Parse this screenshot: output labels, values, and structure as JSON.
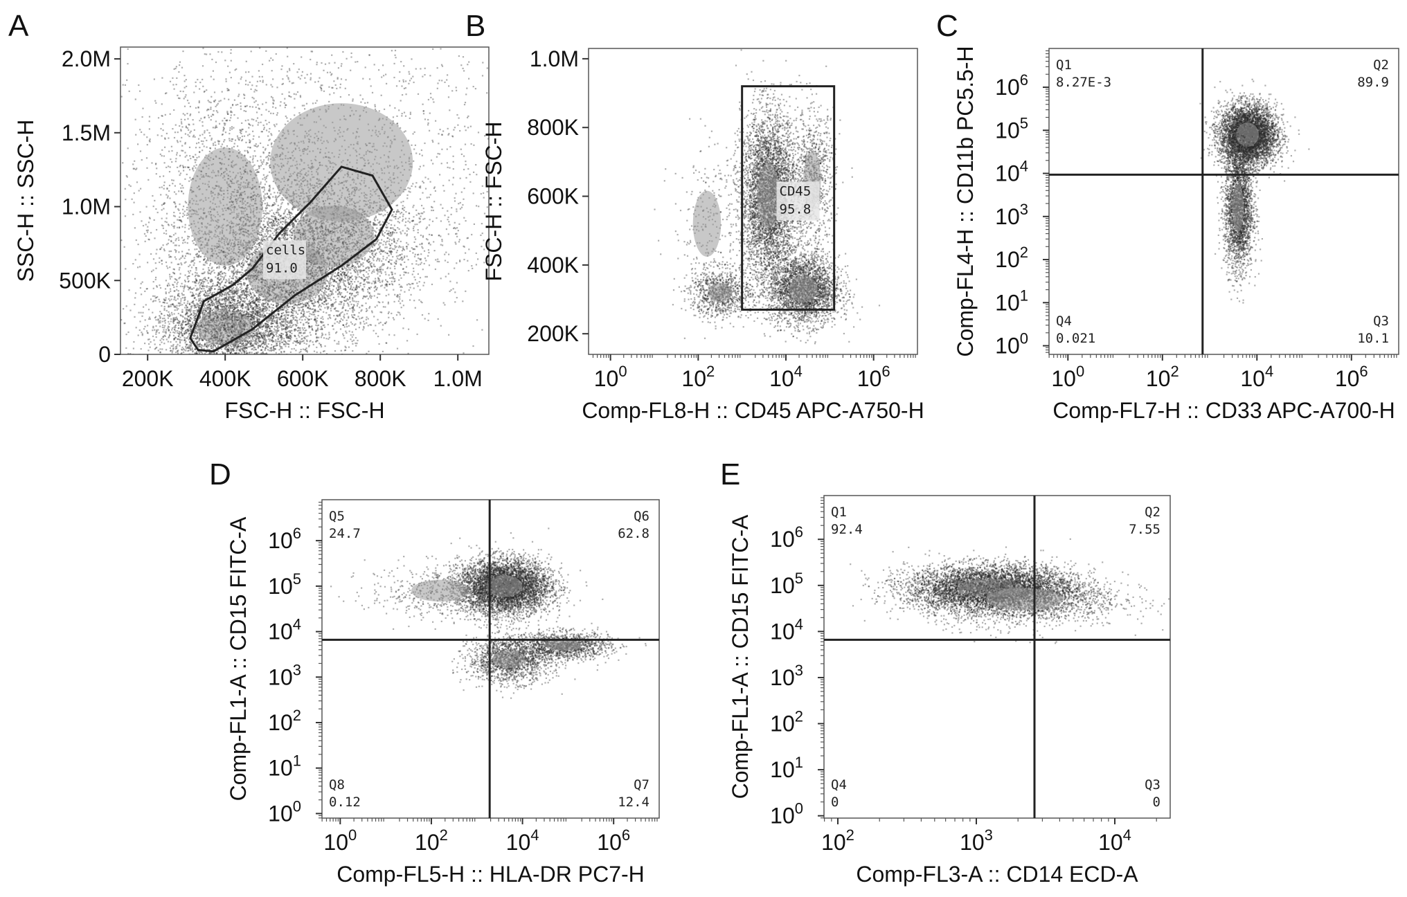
{
  "chart_data": [
    {
      "type": "scatter",
      "panel": "A",
      "xlabel": "FSC-H :: FSC-H",
      "ylabel": "SSC-H :: SSC-H",
      "xscale": "linear",
      "yscale": "linear",
      "xlim": [
        130000,
        1080000
      ],
      "ylim": [
        0,
        2080000
      ],
      "xticks": [
        {
          "v": 200000,
          "label": "200K"
        },
        {
          "v": 400000,
          "label": "400K"
        },
        {
          "v": 600000,
          "label": "600K"
        },
        {
          "v": 800000,
          "label": "800K"
        },
        {
          "v": 1000000,
          "label": "1.0M"
        }
      ],
      "yticks": [
        {
          "v": 0,
          "label": "0"
        },
        {
          "v": 500000,
          "label": "500K"
        },
        {
          "v": 1000000,
          "label": "1.0M"
        },
        {
          "v": 1500000,
          "label": "1.5M"
        },
        {
          "v": 2000000,
          "label": "2.0M"
        }
      ],
      "populations": [
        {
          "cx": 400000,
          "cy": 180000,
          "sx": 90000,
          "sy": 150000,
          "n": 3200
        },
        {
          "cx": 560000,
          "cy": 550000,
          "sx": 130000,
          "sy": 260000,
          "n": 3800
        },
        {
          "cx": 680000,
          "cy": 800000,
          "sx": 130000,
          "sy": 260000,
          "n": 2000
        },
        {
          "cx": 400000,
          "cy": 1000000,
          "sx": 120000,
          "sy": 500000,
          "n": 1800
        },
        {
          "cx": 700000,
          "cy": 1300000,
          "sx": 230000,
          "sy": 500000,
          "n": 1600
        }
      ],
      "gates": [
        {
          "kind": "polygon",
          "name": "cells",
          "value": "91.0",
          "points": [
            [
              330000,
              30000
            ],
            [
              310000,
              110000
            ],
            [
              345000,
              360000
            ],
            [
              420000,
              470000
            ],
            [
              470000,
              580000
            ],
            [
              540000,
              820000
            ],
            [
              620000,
              1030000
            ],
            [
              700000,
              1270000
            ],
            [
              780000,
              1210000
            ],
            [
              830000,
              980000
            ],
            [
              790000,
              780000
            ],
            [
              700000,
              600000
            ],
            [
              580000,
              400000
            ],
            [
              470000,
              170000
            ],
            [
              370000,
              20000
            ]
          ],
          "label_at": [
            505000,
            650000
          ]
        }
      ]
    },
    {
      "type": "scatter",
      "panel": "B",
      "xlabel": "Comp-FL8-H :: CD45 APC-A750-H",
      "ylabel": "FSC-H :: FSC-H",
      "xscale": "log",
      "yscale": "linear",
      "xlim": [
        -0.5,
        7.0
      ],
      "ylim": [
        140000,
        1030000
      ],
      "xticks": [
        {
          "v": 0,
          "base": "10",
          "exp": "0"
        },
        {
          "v": 2,
          "base": "10",
          "exp": "2"
        },
        {
          "v": 4,
          "base": "10",
          "exp": "4"
        },
        {
          "v": 6,
          "base": "10",
          "exp": "6"
        }
      ],
      "yticks": [
        {
          "v": 200000,
          "label": "200K"
        },
        {
          "v": 400000,
          "label": "400K"
        },
        {
          "v": 600000,
          "label": "600K"
        },
        {
          "v": 800000,
          "label": "800K"
        },
        {
          "v": 1000000,
          "label": "1.0M"
        }
      ],
      "populations": [
        {
          "cx": 3.6,
          "cy": 600000,
          "sx": 0.32,
          "sy": 120000,
          "n": 4500
        },
        {
          "cx": 4.4,
          "cy": 330000,
          "sx": 0.4,
          "sy": 50000,
          "n": 2800
        },
        {
          "cx": 4.6,
          "cy": 650000,
          "sx": 0.25,
          "sy": 100000,
          "n": 900
        },
        {
          "cx": 2.5,
          "cy": 320000,
          "sx": 0.35,
          "sy": 35000,
          "n": 900
        },
        {
          "cx": 2.2,
          "cy": 520000,
          "sx": 0.4,
          "sy": 120000,
          "n": 250
        }
      ],
      "gates": [
        {
          "kind": "rect",
          "name": "CD45",
          "value": "95.8",
          "x0": 3.0,
          "x1": 5.1,
          "y0": 270000,
          "y1": 920000,
          "label_at": [
            3.85,
            590000
          ]
        }
      ]
    },
    {
      "type": "scatter",
      "panel": "C",
      "xlabel": "Comp-FL7-H :: CD33 APC-A700-H",
      "ylabel": "Comp-FL4-H :: CD11b PC5.5-H",
      "xscale": "log",
      "yscale": "log",
      "xlim": [
        -0.4,
        7.0
      ],
      "ylim": [
        -0.2,
        6.9
      ],
      "xticks": [
        {
          "v": 0,
          "base": "10",
          "exp": "0"
        },
        {
          "v": 2,
          "base": "10",
          "exp": "2"
        },
        {
          "v": 4,
          "base": "10",
          "exp": "4"
        },
        {
          "v": 6,
          "base": "10",
          "exp": "6"
        }
      ],
      "yticks": [
        {
          "v": 0,
          "base": "10",
          "exp": "0"
        },
        {
          "v": 1,
          "base": "10",
          "exp": "1"
        },
        {
          "v": 2,
          "base": "10",
          "exp": "2"
        },
        {
          "v": 3,
          "base": "10",
          "exp": "3"
        },
        {
          "v": 4,
          "base": "10",
          "exp": "4"
        },
        {
          "v": 5,
          "base": "10",
          "exp": "5"
        },
        {
          "v": 6,
          "base": "10",
          "exp": "6"
        }
      ],
      "populations": [
        {
          "cx": 3.8,
          "cy": 4.9,
          "sx": 0.3,
          "sy": 0.35,
          "n": 5000
        },
        {
          "cx": 3.6,
          "cy": 3.2,
          "sx": 0.15,
          "sy": 0.7,
          "n": 2600
        }
      ],
      "quadrant": {
        "x": 2.85,
        "y": 3.97
      },
      "quadrants": [
        {
          "name": "Q1",
          "value": "8.27E-3",
          "pos": "top-left"
        },
        {
          "name": "Q2",
          "value": "89.9",
          "pos": "top-right"
        },
        {
          "name": "Q3",
          "value": "10.1",
          "pos": "bottom-right"
        },
        {
          "name": "Q4",
          "value": "0.021",
          "pos": "bottom-left"
        }
      ]
    },
    {
      "type": "scatter",
      "panel": "D",
      "xlabel": "Comp-FL5-H :: HLA-DR PC7-H",
      "ylabel": "Comp-FL1-A :: CD15 FITC-A",
      "xscale": "log",
      "yscale": "log",
      "xlim": [
        -0.4,
        7.0
      ],
      "ylim": [
        -0.1,
        6.9
      ],
      "xticks": [
        {
          "v": 0,
          "base": "10",
          "exp": "0"
        },
        {
          "v": 2,
          "base": "10",
          "exp": "2"
        },
        {
          "v": 4,
          "base": "10",
          "exp": "4"
        },
        {
          "v": 6,
          "base": "10",
          "exp": "6"
        }
      ],
      "yticks": [
        {
          "v": 0,
          "base": "10",
          "exp": "0"
        },
        {
          "v": 1,
          "base": "10",
          "exp": "1"
        },
        {
          "v": 2,
          "base": "10",
          "exp": "2"
        },
        {
          "v": 3,
          "base": "10",
          "exp": "3"
        },
        {
          "v": 4,
          "base": "10",
          "exp": "4"
        },
        {
          "v": 5,
          "base": "10",
          "exp": "5"
        },
        {
          "v": 6,
          "base": "10",
          "exp": "6"
        }
      ],
      "populations": [
        {
          "cx": 3.6,
          "cy": 5.0,
          "sx": 0.5,
          "sy": 0.3,
          "n": 5000
        },
        {
          "cx": 3.7,
          "cy": 3.4,
          "sx": 0.45,
          "sy": 0.25,
          "n": 1600
        },
        {
          "cx": 4.9,
          "cy": 3.7,
          "sx": 0.5,
          "sy": 0.15,
          "n": 1300
        },
        {
          "cx": 2.2,
          "cy": 4.9,
          "sx": 0.8,
          "sy": 0.3,
          "n": 500
        }
      ],
      "quadrant": {
        "x": 3.28,
        "y": 3.82
      },
      "quadrants": [
        {
          "name": "Q5",
          "value": "24.7",
          "pos": "top-left"
        },
        {
          "name": "Q6",
          "value": "62.8",
          "pos": "top-right"
        },
        {
          "name": "Q7",
          "value": "12.4",
          "pos": "bottom-right"
        },
        {
          "name": "Q8",
          "value": "0.12",
          "pos": "bottom-left"
        }
      ]
    },
    {
      "type": "scatter",
      "panel": "E",
      "xlabel": "Comp-FL3-A :: CD14 ECD-A",
      "ylabel": "Comp-FL1-A :: CD15 FITC-A",
      "xscale": "log",
      "yscale": "log",
      "xlim": [
        1.9,
        4.4
      ],
      "ylim": [
        -0.05,
        6.95
      ],
      "xticks": [
        {
          "v": 2,
          "base": "10",
          "exp": "2"
        },
        {
          "v": 3,
          "base": "10",
          "exp": "3"
        },
        {
          "v": 4,
          "base": "10",
          "exp": "4"
        }
      ],
      "yticks": [
        {
          "v": 0,
          "base": "10",
          "exp": "0"
        },
        {
          "v": 1,
          "base": "10",
          "exp": "1"
        },
        {
          "v": 2,
          "base": "10",
          "exp": "2"
        },
        {
          "v": 3,
          "base": "10",
          "exp": "3"
        },
        {
          "v": 4,
          "base": "10",
          "exp": "4"
        },
        {
          "v": 5,
          "base": "10",
          "exp": "5"
        },
        {
          "v": 6,
          "base": "10",
          "exp": "6"
        }
      ],
      "populations": [
        {
          "cx": 3.1,
          "cy": 4.95,
          "sx": 0.3,
          "sy": 0.25,
          "n": 5500
        },
        {
          "cx": 3.35,
          "cy": 4.7,
          "sx": 0.35,
          "sy": 0.3,
          "n": 1500
        }
      ],
      "quadrant": {
        "x": 3.42,
        "y": 3.82
      },
      "quadrants": [
        {
          "name": "Q1",
          "value": "92.4",
          "pos": "top-left"
        },
        {
          "name": "Q2",
          "value": "7.55",
          "pos": "top-right"
        },
        {
          "name": "Q3",
          "value": "0",
          "pos": "bottom-right"
        },
        {
          "name": "Q4",
          "value": "0",
          "pos": "bottom-left"
        }
      ]
    }
  ]
}
